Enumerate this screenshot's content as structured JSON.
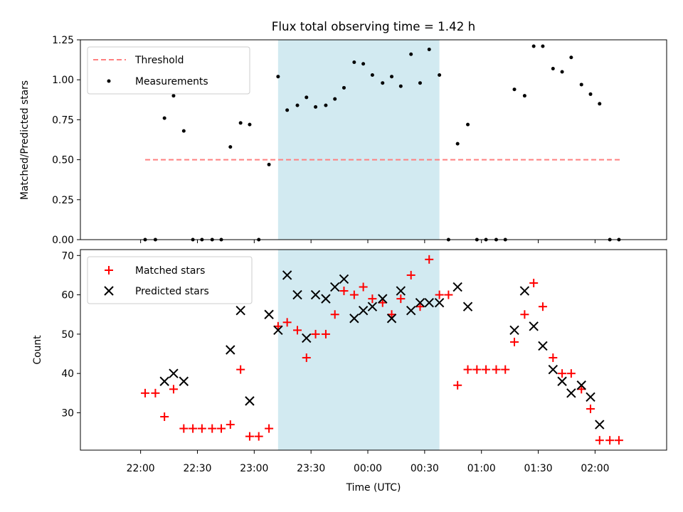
{
  "chart_data": [
    {
      "type": "scatter",
      "title": "Flux total observing time = 1.42 h",
      "xlabel": "",
      "ylabel": "Matched/Predicted stars",
      "ylim": [
        0,
        1.25
      ],
      "yticks": [
        0,
        0.25,
        0.5,
        0.75,
        1.0,
        1.25
      ],
      "ytick_labels": [
        "0.00",
        "0.25",
        "0.50",
        "0.75",
        "1.00",
        "1.25"
      ],
      "xlim": [
        -0.53,
        4.63
      ],
      "xticks": [
        0,
        0.5,
        1,
        1.5,
        2,
        2.5,
        3,
        3.5,
        4
      ],
      "legend_position": "upper left",
      "legend": [
        {
          "label": "Threshold",
          "kind": "dashed-line",
          "color": "#ff8080"
        },
        {
          "label": "Measurements",
          "kind": "dot",
          "color": "#000000"
        }
      ],
      "shaded_region": {
        "x_start": 1.21,
        "x_end": 2.63,
        "color": "#add8e6"
      },
      "threshold": {
        "value": 0.5,
        "x_start": 0.04,
        "x_end": 4.24
      },
      "series": [
        {
          "name": "Measurements",
          "points": [
            [
              0.04,
              0.0
            ],
            [
              0.13,
              0.0
            ],
            [
              0.21,
              0.76
            ],
            [
              0.29,
              0.9
            ],
            [
              0.38,
              0.68
            ],
            [
              0.46,
              0.0
            ],
            [
              0.54,
              0.0
            ],
            [
              0.63,
              0.0
            ],
            [
              0.71,
              0.0
            ],
            [
              0.79,
              0.58
            ],
            [
              0.88,
              0.73
            ],
            [
              0.96,
              0.72
            ],
            [
              1.04,
              0.0
            ],
            [
              1.13,
              0.47
            ],
            [
              1.21,
              1.02
            ],
            [
              1.29,
              0.81
            ],
            [
              1.38,
              0.84
            ],
            [
              1.46,
              0.89
            ],
            [
              1.54,
              0.83
            ],
            [
              1.63,
              0.84
            ],
            [
              1.71,
              0.88
            ],
            [
              1.79,
              0.95
            ],
            [
              1.88,
              1.11
            ],
            [
              1.96,
              1.1
            ],
            [
              2.04,
              1.03
            ],
            [
              2.13,
              0.98
            ],
            [
              2.21,
              1.02
            ],
            [
              2.29,
              0.96
            ],
            [
              2.38,
              1.16
            ],
            [
              2.46,
              0.98
            ],
            [
              2.54,
              1.19
            ],
            [
              2.63,
              1.03
            ],
            [
              2.71,
              0.0
            ],
            [
              2.79,
              0.6
            ],
            [
              2.88,
              0.72
            ],
            [
              2.96,
              0.0
            ],
            [
              3.04,
              0.0
            ],
            [
              3.13,
              0.0
            ],
            [
              3.21,
              0.0
            ],
            [
              3.29,
              0.94
            ],
            [
              3.38,
              0.9
            ],
            [
              3.46,
              1.21
            ],
            [
              3.54,
              1.21
            ],
            [
              3.63,
              1.07
            ],
            [
              3.71,
              1.05
            ],
            [
              3.79,
              1.14
            ],
            [
              3.88,
              0.97
            ],
            [
              3.96,
              0.91
            ],
            [
              4.04,
              0.85
            ],
            [
              4.13,
              0.0
            ],
            [
              4.21,
              0.0
            ]
          ]
        }
      ]
    },
    {
      "type": "scatter",
      "title": "",
      "xlabel": "Time (UTC)",
      "ylabel": "Count",
      "ylim": [
        20.5,
        71.5
      ],
      "yticks": [
        30,
        40,
        50,
        60,
        70
      ],
      "ytick_labels": [
        "30",
        "40",
        "50",
        "60",
        "70"
      ],
      "xlim": [
        -0.53,
        4.63
      ],
      "xticks": [
        0,
        0.5,
        1,
        1.5,
        2,
        2.5,
        3,
        3.5,
        4
      ],
      "xtick_labels": [
        "22:00",
        "22:30",
        "23:00",
        "23:30",
        "00:00",
        "00:30",
        "01:00",
        "01:30",
        "02:00"
      ],
      "legend_position": "upper left",
      "legend": [
        {
          "label": "Matched stars",
          "kind": "plus",
          "color": "#ff0000"
        },
        {
          "label": "Predicted stars",
          "kind": "x",
          "color": "#000000"
        }
      ],
      "shaded_region": {
        "x_start": 1.21,
        "x_end": 2.63,
        "color": "#add8e6"
      },
      "series": [
        {
          "name": "Matched stars",
          "marker": "plus",
          "color": "#ff0000",
          "points": [
            [
              0.04,
              35
            ],
            [
              0.13,
              35
            ],
            [
              0.21,
              29
            ],
            [
              0.29,
              36
            ],
            [
              0.38,
              26
            ],
            [
              0.46,
              26
            ],
            [
              0.54,
              26
            ],
            [
              0.63,
              26
            ],
            [
              0.71,
              26
            ],
            [
              0.79,
              27
            ],
            [
              0.88,
              41
            ],
            [
              0.96,
              24
            ],
            [
              1.04,
              24
            ],
            [
              1.13,
              26
            ],
            [
              1.21,
              52
            ],
            [
              1.29,
              53
            ],
            [
              1.38,
              51
            ],
            [
              1.46,
              44
            ],
            [
              1.54,
              50
            ],
            [
              1.63,
              50
            ],
            [
              1.71,
              55
            ],
            [
              1.79,
              61
            ],
            [
              1.88,
              60
            ],
            [
              1.96,
              62
            ],
            [
              2.04,
              59
            ],
            [
              2.13,
              58
            ],
            [
              2.21,
              55
            ],
            [
              2.29,
              59
            ],
            [
              2.38,
              65
            ],
            [
              2.46,
              57
            ],
            [
              2.54,
              69
            ],
            [
              2.63,
              60
            ],
            [
              2.71,
              60
            ],
            [
              2.79,
              37
            ],
            [
              2.88,
              41
            ],
            [
              2.96,
              41
            ],
            [
              3.04,
              41
            ],
            [
              3.13,
              41
            ],
            [
              3.21,
              41
            ],
            [
              3.29,
              48
            ],
            [
              3.38,
              55
            ],
            [
              3.46,
              63
            ],
            [
              3.54,
              57
            ],
            [
              3.63,
              44
            ],
            [
              3.71,
              40
            ],
            [
              3.79,
              40
            ],
            [
              3.88,
              36
            ],
            [
              3.96,
              31
            ],
            [
              4.04,
              23
            ],
            [
              4.13,
              23
            ],
            [
              4.21,
              23
            ]
          ]
        },
        {
          "name": "Predicted stars",
          "marker": "x",
          "color": "#000000",
          "points": [
            [
              0.21,
              38
            ],
            [
              0.29,
              40
            ],
            [
              0.38,
              38
            ],
            [
              0.79,
              46
            ],
            [
              0.88,
              56
            ],
            [
              0.96,
              33
            ],
            [
              1.13,
              55
            ],
            [
              1.21,
              51
            ],
            [
              1.29,
              65
            ],
            [
              1.38,
              60
            ],
            [
              1.46,
              49
            ],
            [
              1.54,
              60
            ],
            [
              1.63,
              59
            ],
            [
              1.71,
              62
            ],
            [
              1.79,
              64
            ],
            [
              1.88,
              54
            ],
            [
              1.96,
              56
            ],
            [
              2.04,
              57
            ],
            [
              2.13,
              59
            ],
            [
              2.21,
              54
            ],
            [
              2.29,
              61
            ],
            [
              2.38,
              56
            ],
            [
              2.46,
              58
            ],
            [
              2.54,
              58
            ],
            [
              2.63,
              58
            ],
            [
              2.79,
              62
            ],
            [
              2.88,
              57
            ],
            [
              3.29,
              51
            ],
            [
              3.38,
              61
            ],
            [
              3.46,
              52
            ],
            [
              3.54,
              47
            ],
            [
              3.63,
              41
            ],
            [
              3.71,
              38
            ],
            [
              3.79,
              35
            ],
            [
              3.88,
              37
            ],
            [
              3.96,
              34
            ],
            [
              4.04,
              27
            ]
          ]
        }
      ]
    }
  ]
}
